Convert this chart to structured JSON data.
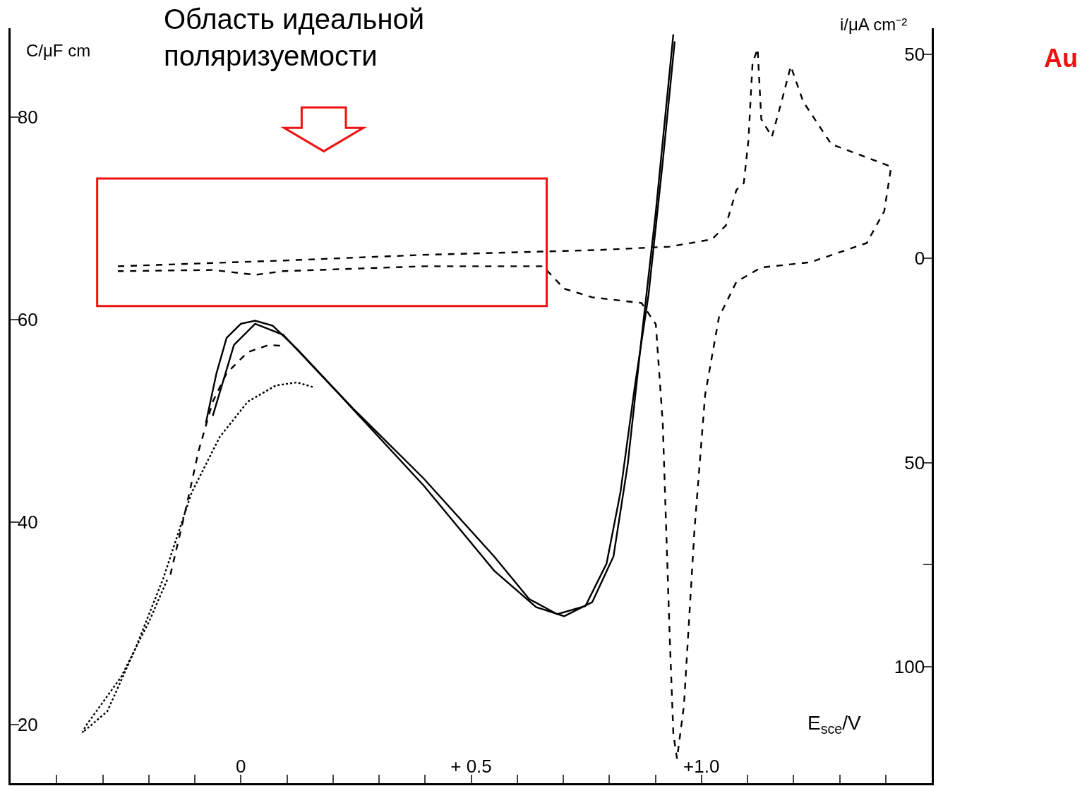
{
  "chart_data": {
    "type": "line",
    "title": "Область идеальной\nполяризуемости",
    "xlabel": "E$_{sce}$/V",
    "ylabel": "C/μF cm",
    "y2label": "i/μA cm⁻²",
    "annotations": [
      {
        "text": "Au"
      }
    ],
    "xlim": [
      -0.5,
      1.5
    ],
    "xticks": [
      {
        "value": -0.4,
        "label": null
      },
      {
        "value": -0.3,
        "label": null
      },
      {
        "value": -0.2,
        "label": null
      },
      {
        "value": -0.1,
        "label": null
      },
      {
        "value": 0,
        "label": "0"
      },
      {
        "value": 0.1,
        "label": null
      },
      {
        "value": 0.2,
        "label": null
      },
      {
        "value": 0.3,
        "label": null
      },
      {
        "value": 0.4,
        "label": null
      },
      {
        "value": 0.5,
        "label": "+ 0.5"
      },
      {
        "value": 0.6,
        "label": null
      },
      {
        "value": 0.7,
        "label": null
      },
      {
        "value": 0.8,
        "label": null
      },
      {
        "value": 0.9,
        "label": null
      },
      {
        "value": 1.0,
        "label": "+1.0"
      },
      {
        "value": 1.1,
        "label": null
      },
      {
        "value": 1.2,
        "label": null
      },
      {
        "value": 1.3,
        "label": null
      },
      {
        "value": 1.4,
        "label": null
      }
    ],
    "ylim": [
      14.2,
      88.8
    ],
    "yticks": [
      20,
      40,
      60,
      80
    ],
    "y2lim": [
      -128.5,
      56.4
    ],
    "y2ticks": [
      {
        "value": 50,
        "label": "50"
      },
      0,
      {
        "value": -50,
        "label": "50"
      },
      {
        "value": -75,
        "label": null
      },
      {
        "value": -100,
        "label": "100"
      }
    ],
    "marker": "none",
    "series": [
      {
        "color": "#000000",
        "line_style": "solid",
        "x": [
          -0.076,
          -0.053,
          -0.031,
          0,
          0.031,
          0.069,
          0.122,
          0.244,
          0.397,
          0.55,
          0.626,
          0.687,
          0.748,
          0.794,
          0.824,
          0.855,
          0.885,
          0.916,
          0.942
        ],
        "values": [
          49.8,
          54.7,
          58.2,
          59.6,
          59.9,
          59.4,
          57.1,
          51.2,
          44.3,
          36.6,
          32.4,
          30.9,
          31.7,
          35.9,
          42.9,
          53.3,
          62.4,
          75.6,
          87.5
        ]
      },
      {
        "color": "#000000",
        "line_style": "solid",
        "x": [
          -0.061,
          -0.015,
          0.031,
          0.092,
          0.214,
          0.397,
          0.55,
          0.641,
          0.702,
          0.763,
          0.809,
          0.84,
          0.87,
          0.901,
          0.939
        ],
        "values": [
          50.5,
          57.5,
          59.6,
          58.5,
          52.6,
          43.6,
          35.2,
          31.6,
          30.7,
          32.1,
          36.6,
          45.7,
          58.2,
          70.7,
          88.2
        ]
      },
      {
        "color": "#000000",
        "line_style": "dashed",
        "x": [
          -0.153,
          -0.122,
          -0.092,
          -0.061,
          -0.031,
          0.015,
          0.061,
          0.092
        ],
        "values": [
          34.8,
          40.8,
          47.0,
          51.9,
          54.7,
          56.8,
          57.5,
          57.4
        ]
      },
      {
        "color": "#000000",
        "line_style": "dotted",
        "x": [
          -0.16,
          -0.198,
          -0.26,
          -0.336,
          -0.344,
          -0.29,
          -0.229,
          -0.168,
          -0.107,
          -0.046,
          0.015,
          0.076,
          0.122,
          0.16
        ],
        "values": [
          34.3,
          30.3,
          24.7,
          19.9,
          19.2,
          21.3,
          27.5,
          34.5,
          42.9,
          48.4,
          51.9,
          53.5,
          53.8,
          53.3
        ]
      },
      {
        "color": "#000000",
        "line_style": "dashed",
        "axis": "y2",
        "x": [
          -0.267,
          0.092,
          0.397,
          0.779,
          0.931,
          1.023,
          1.053,
          1.076,
          1.092,
          1.102,
          1.111,
          1.122,
          1.13,
          1.153,
          1.176,
          1.194,
          1.221,
          1.282,
          1.412,
          1.397,
          1.359,
          1.237,
          1.13,
          1.076,
          1.038,
          1.008,
          0.985,
          0.962,
          0.947,
          0.939,
          0.931,
          0.916,
          0.901,
          0.87,
          0.763,
          0.702,
          0.656,
          0.397,
          0.092,
          0.031,
          -0.061,
          -0.267
        ],
        "values": [
          -1.9,
          -0.5,
          0.9,
          2.1,
          2.9,
          4.7,
          8.1,
          16.8,
          18.5,
          28.9,
          47.9,
          51.4,
          34.1,
          29.8,
          39.3,
          47.1,
          38.4,
          28.0,
          22.5,
          11.6,
          3.8,
          -0.9,
          -2.2,
          -5.7,
          -14.4,
          -33.4,
          -66.3,
          -109.5,
          -122.5,
          -116.4,
          -92.2,
          -40.3,
          -16.1,
          -10.9,
          -9.5,
          -7.4,
          -1.9,
          -1.9,
          -3.1,
          -4.0,
          -2.8,
          -3.1
        ]
      }
    ]
  }
}
